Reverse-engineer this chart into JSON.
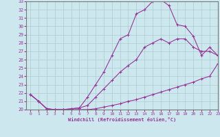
{
  "xlabel": "Windchill (Refroidissement éolien,°C)",
  "background_color": "#cce8ee",
  "grid_color": "#aacccc",
  "line_color": "#993399",
  "marker": "+",
  "xlim": [
    -0.5,
    23
  ],
  "ylim": [
    20,
    33
  ],
  "yticks": [
    20,
    21,
    22,
    23,
    24,
    25,
    26,
    27,
    28,
    29,
    30,
    31,
    32,
    33
  ],
  "xticks": [
    0,
    1,
    2,
    3,
    4,
    5,
    6,
    7,
    8,
    9,
    10,
    11,
    12,
    13,
    14,
    15,
    16,
    17,
    18,
    19,
    20,
    21,
    22,
    23
  ],
  "lines": [
    {
      "x": [
        0,
        1,
        2,
        3,
        4,
        5,
        6,
        7,
        8,
        9,
        10,
        11,
        12,
        13,
        14,
        15,
        16,
        17,
        18,
        19,
        20,
        21,
        22,
        23
      ],
      "y": [
        21.8,
        21.0,
        20.1,
        20.0,
        20.0,
        20.0,
        20.0,
        20.0,
        20.1,
        20.3,
        20.5,
        20.7,
        21.0,
        21.2,
        21.5,
        21.8,
        22.1,
        22.4,
        22.7,
        23.0,
        23.3,
        23.7,
        24.0,
        25.5
      ]
    },
    {
      "x": [
        0,
        1,
        2,
        3,
        4,
        5,
        6,
        7,
        8,
        9,
        10,
        11,
        12,
        13,
        14,
        15,
        16,
        17,
        18,
        19,
        20,
        21,
        22,
        23
      ],
      "y": [
        21.8,
        21.0,
        20.1,
        20.0,
        20.0,
        20.1,
        20.2,
        20.5,
        21.5,
        22.5,
        23.5,
        24.5,
        25.3,
        26.0,
        27.5,
        28.0,
        28.5,
        28.0,
        28.5,
        28.5,
        27.5,
        27.0,
        27.0,
        26.5
      ]
    },
    {
      "x": [
        0,
        1,
        2,
        3,
        4,
        5,
        6,
        7,
        8,
        9,
        10,
        11,
        12,
        13,
        14,
        15,
        16,
        17,
        18,
        19,
        20,
        21,
        22,
        23
      ],
      "y": [
        21.8,
        21.0,
        20.1,
        20.0,
        20.0,
        20.1,
        20.2,
        21.5,
        23.0,
        24.5,
        26.5,
        28.5,
        29.0,
        31.5,
        32.0,
        33.0,
        33.2,
        32.5,
        30.2,
        30.0,
        28.8,
        26.5,
        27.5,
        26.5
      ]
    }
  ]
}
